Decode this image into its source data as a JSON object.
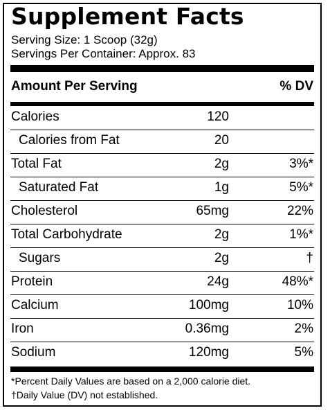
{
  "title": "Supplement Facts",
  "serving_size": "Serving Size: 1 Scoop (32g)",
  "servings_per_container": "Servings Per Container: Approx. 83",
  "header": {
    "amount": "Amount Per Serving",
    "dv": "% DV"
  },
  "rows": [
    {
      "name": "Calories",
      "amount": "120",
      "dv": ""
    },
    {
      "name": "Calories from Fat",
      "amount": "20",
      "dv": ""
    },
    {
      "name": "Total Fat",
      "amount": "2g",
      "dv": "3%*"
    },
    {
      "name": "Saturated Fat",
      "amount": "1g",
      "dv": "5%*"
    },
    {
      "name": "Cholesterol",
      "amount": "65mg",
      "dv": "22%"
    },
    {
      "name": "Total Carbohydrate",
      "amount": "2g",
      "dv": "1%*"
    },
    {
      "name": "Sugars",
      "amount": "2g",
      "dv": "†"
    },
    {
      "name": "Protein",
      "amount": "24g",
      "dv": "48%*"
    },
    {
      "name": "Calcium",
      "amount": "100mg",
      "dv": "10%"
    },
    {
      "name": "Iron",
      "amount": "0.36mg",
      "dv": "2%"
    },
    {
      "name": "Sodium",
      "amount": "120mg",
      "dv": "5%"
    }
  ],
  "footnotes": [
    "*Percent Daily Values are based on a 2,000 calorie diet.",
    "†Daily Value (DV) not established."
  ]
}
